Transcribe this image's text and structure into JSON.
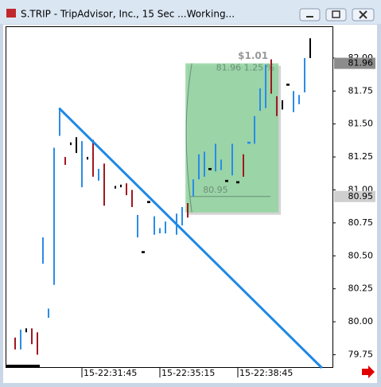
{
  "chart_data": {
    "type": "ohlc",
    "title": "S.TRIP - TripAdvisor, Inc., 15 Sec ...Working...",
    "x": [
      0,
      1,
      2,
      3,
      4,
      5,
      6,
      7,
      8,
      9,
      10,
      11,
      12,
      13,
      14,
      15,
      16,
      18,
      19,
      20,
      21,
      22,
      23,
      24,
      25,
      26,
      27,
      29,
      30,
      31,
      32,
      33,
      34,
      35,
      36,
      37,
      38,
      39,
      40,
      41,
      42,
      43,
      44,
      45,
      46,
      47,
      48,
      49,
      50,
      51,
      52,
      53
    ],
    "series": {
      "high": [
        79.88,
        79.94,
        79.95,
        79.95,
        79.92,
        80.64,
        80.1,
        81.32,
        81.62,
        81.25,
        81.36,
        81.4,
        81.37,
        81.25,
        81.38,
        81.16,
        81.2,
        81.03,
        81.04,
        81.05,
        81.0,
        80.81,
        80.53,
        80.91,
        80.8,
        80.71,
        80.76,
        80.82,
        80.87,
        80.9,
        81.08,
        81.27,
        81.29,
        81.16,
        81.35,
        81.23,
        81.07,
        81.35,
        81.06,
        81.27,
        81.36,
        81.56,
        81.77,
        81.95,
        81.99,
        81.71,
        81.68,
        81.8,
        81.75,
        81.72,
        82.0,
        82.15
      ],
      "low": [
        79.79,
        79.79,
        79.92,
        79.83,
        79.75,
        80.44,
        80.03,
        80.28,
        81.41,
        81.19,
        81.34,
        81.28,
        81.02,
        81.23,
        81.1,
        81.07,
        80.88,
        81.01,
        81.02,
        80.96,
        80.87,
        80.64,
        80.52,
        80.9,
        80.66,
        80.67,
        80.67,
        80.66,
        80.73,
        80.79,
        80.95,
        81.08,
        81.1,
        81.15,
        81.14,
        81.15,
        81.06,
        81.11,
        81.05,
        81.1,
        81.35,
        81.35,
        81.6,
        81.62,
        81.73,
        81.56,
        81.61,
        81.79,
        81.59,
        81.65,
        81.74,
        82.0
      ],
      "colors": [
        "#a01820",
        "#2a8ce8",
        "#000000",
        "#a01820",
        "#a01820",
        "#2a8ce8",
        "#2a8ce8",
        "#2a8ce8",
        "#2a8ce8",
        "#a01820",
        "#000000",
        "#000000",
        "#2a8ce8",
        "#000000",
        "#a01820",
        "#2a8ce8",
        "#a01820",
        "#000000",
        "#000000",
        "#a01820",
        "#a01820",
        "#2a8ce8",
        "#000000",
        "#000000",
        "#2a8ce8",
        "#2a8ce8",
        "#2a8ce8",
        "#2a8ce8",
        "#2a8ce8",
        "#a01820",
        "#2a8ce8",
        "#2a8ce8",
        "#2a8ce8",
        "#000000",
        "#2a8ce8",
        "#2a8ce8",
        "#000000",
        "#2a8ce8",
        "#000000",
        "#a01820",
        "#2a8ce8",
        "#2a8ce8",
        "#2a8ce8",
        "#2a8ce8",
        "#a01820",
        "#a01820",
        "#000000",
        "#000000",
        "#2a8ce8",
        "#2a8ce8",
        "#2a8ce8",
        "#000000"
      ]
    },
    "xlim": [
      -1.57,
      57
    ],
    "xticks": [
      {
        "value": 12,
        "label": "15-22:31:45"
      },
      {
        "value": 26,
        "label": "15-22:35:15"
      },
      {
        "value": 40,
        "label": "15-22:38:45"
      }
    ],
    "ylim": [
      79.65,
      82.235
    ],
    "yticks": [
      {
        "value": 82,
        "label": "82.00"
      },
      {
        "value": 81.75,
        "label": "81.75"
      },
      {
        "value": 81.5,
        "label": "81.50"
      },
      {
        "value": 81.25,
        "label": "81.25"
      },
      {
        "value": 81,
        "label": "81.00"
      },
      {
        "value": 80.75,
        "label": "80.75"
      },
      {
        "value": 80.5,
        "label": "80.50"
      },
      {
        "value": 80.25,
        "label": "80.25"
      },
      {
        "value": 80,
        "label": "80.00"
      },
      {
        "value": 79.75,
        "label": "79.75"
      }
    ],
    "trendline": {
      "x": [
        7.9,
        55.1
      ],
      "y": [
        81.62,
        79.65
      ],
      "color": "#1e88e5"
    },
    "measure": {
      "x": [
        30.6,
        47.3
      ],
      "high": 81.96,
      "low": 80.95,
      "label": "$1.01",
      "detail": "81.96 1.25 %",
      "low_label": "80.95",
      "color": "#8fd49f"
    },
    "price_tags": [
      {
        "value": 81.96,
        "label": "81.96"
      },
      {
        "value": 80.95,
        "label": "80.95"
      }
    ]
  }
}
